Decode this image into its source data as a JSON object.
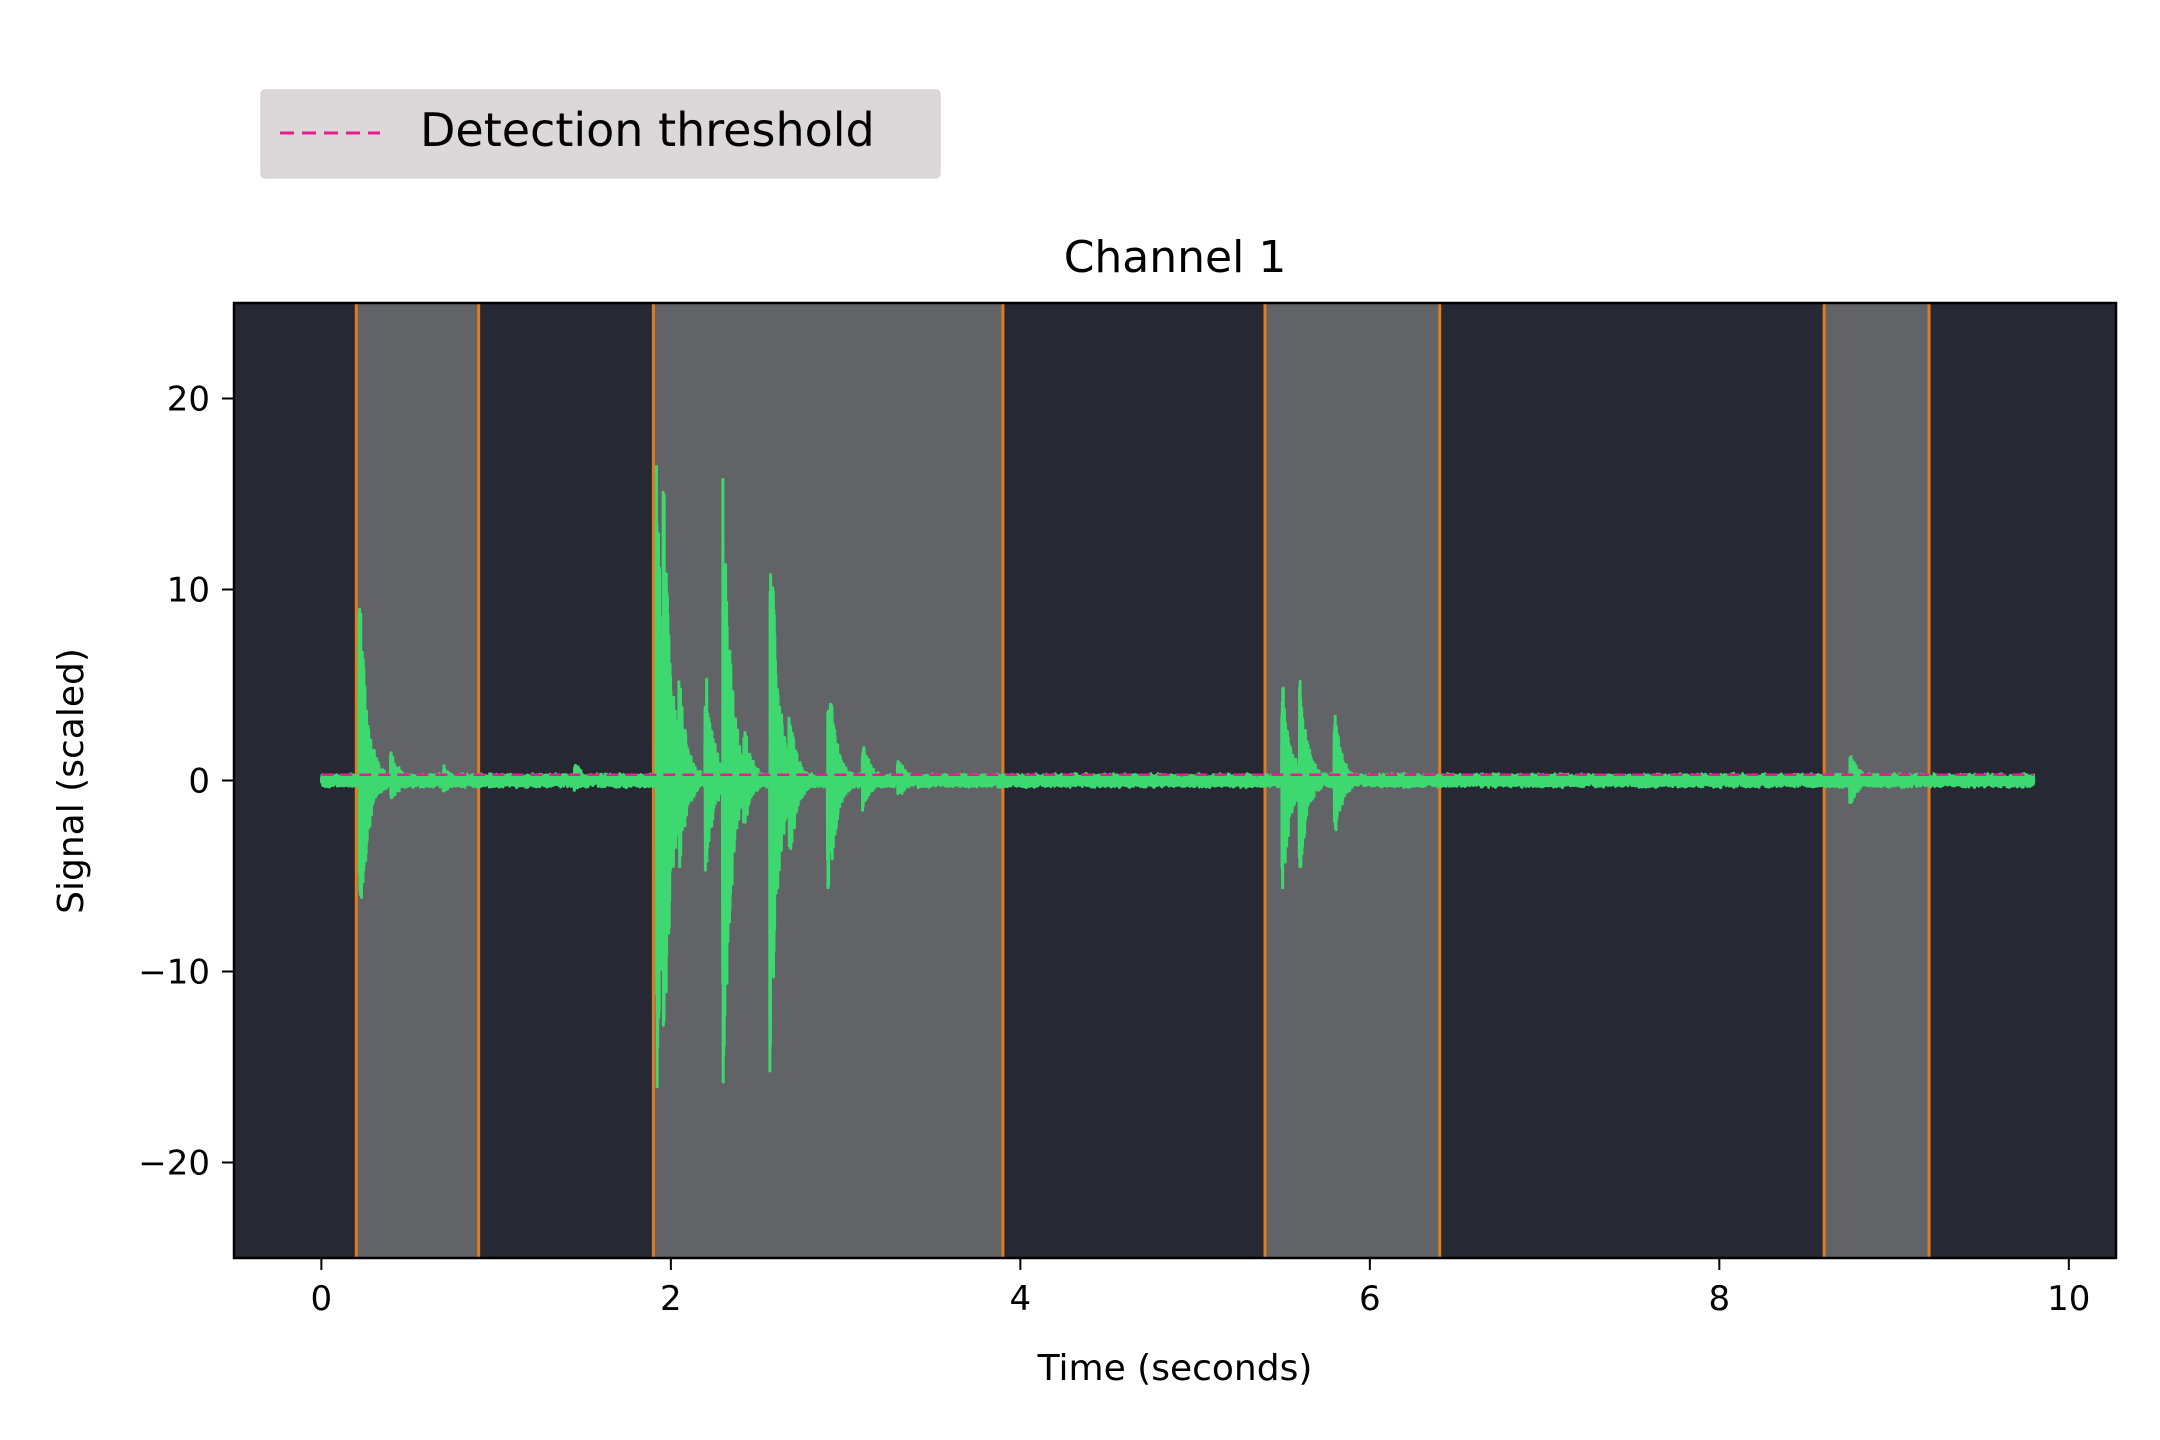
{
  "chart_data": {
    "type": "line",
    "title": "Channel 1",
    "xlabel": "Time (seconds)",
    "ylabel": "Signal (scaled)",
    "xlim": [
      -0.5,
      10.27
    ],
    "ylim": [
      -25,
      25
    ],
    "x_ticks": [
      0,
      2,
      4,
      6,
      8,
      10
    ],
    "x_tick_labels": [
      "0",
      "2",
      "4",
      "6",
      "8",
      "10"
    ],
    "y_ticks": [
      -20,
      -10,
      0,
      10,
      20
    ],
    "y_tick_labels": [
      "−20",
      "−10",
      "0",
      "10",
      "20"
    ],
    "grid": false,
    "legend": {
      "placement": "above-left",
      "entries": [
        {
          "label": "Detection threshold",
          "style": "dashed",
          "color": "#e91e8c"
        }
      ]
    },
    "threshold": {
      "value": 0.3,
      "x_range": [
        0,
        9.8
      ]
    },
    "detected_regions": [
      {
        "start": 0.2,
        "end": 0.9
      },
      {
        "start": 1.9,
        "end": 3.9
      },
      {
        "start": 5.4,
        "end": 6.4
      },
      {
        "start": 8.6,
        "end": 9.2
      }
    ],
    "signal": {
      "x_range": [
        0,
        9.8
      ],
      "envelope": [
        {
          "t": 0.22,
          "max": 9.8,
          "min": -8.8
        },
        {
          "t": 0.27,
          "max": 3.0,
          "min": -2.0
        },
        {
          "t": 0.4,
          "max": 1.5,
          "min": -1.2
        },
        {
          "t": 0.7,
          "max": 0.8,
          "min": -0.8
        },
        {
          "t": 1.45,
          "max": 1.0,
          "min": -0.6
        },
        {
          "t": 1.92,
          "max": 16.7,
          "min": -16.8
        },
        {
          "t": 1.96,
          "max": 15.8,
          "min": -15.0
        },
        {
          "t": 2.05,
          "max": 5.5,
          "min": -4.5
        },
        {
          "t": 2.2,
          "max": 6.0,
          "min": -5.0
        },
        {
          "t": 2.3,
          "max": 16.6,
          "min": -16.8
        },
        {
          "t": 2.42,
          "max": 3.0,
          "min": -2.5
        },
        {
          "t": 2.57,
          "max": 14.3,
          "min": -15.3
        },
        {
          "t": 2.68,
          "max": 3.5,
          "min": -4.5
        },
        {
          "t": 2.9,
          "max": 6.3,
          "min": -6.8
        },
        {
          "t": 3.1,
          "max": 2.0,
          "min": -1.5
        },
        {
          "t": 3.3,
          "max": 1.2,
          "min": -1.0
        },
        {
          "t": 5.5,
          "max": 5.5,
          "min": -6.2
        },
        {
          "t": 5.6,
          "max": 5.3,
          "min": -5.0
        },
        {
          "t": 5.8,
          "max": 3.6,
          "min": -3.0
        },
        {
          "t": 8.75,
          "max": 1.7,
          "min": -1.3
        }
      ]
    },
    "colors": {
      "axes_background": "#262933",
      "region_fill": "#626367",
      "region_edge": "#e07b20",
      "signal": "#3dd870",
      "threshold": "#e91e8c",
      "legend_background": "#dcd8da"
    }
  }
}
